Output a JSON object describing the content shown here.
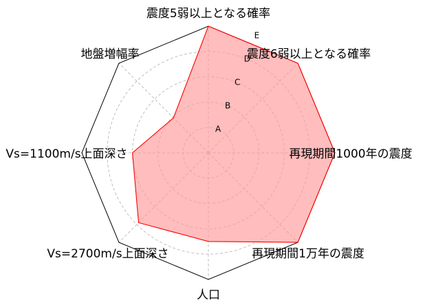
{
  "chart_data": {
    "type": "radar",
    "axes": [
      "震度5弱以上となる確率",
      "震度6弱以上となる確率",
      "再現期間1000年の震度",
      "再現期間1万年の震度",
      "人口",
      "Vs=2700m/s上面深さ",
      "Vs=1100m/s上面深さ",
      "地盤増幅率"
    ],
    "rmax": 5,
    "tick_labels": [
      "A",
      "B",
      "C",
      "D",
      "E"
    ],
    "values": [
      5.0,
      5.0,
      5.0,
      5.0,
      3.5,
      3.9,
      3.0,
      1.95
    ],
    "grid": true,
    "colors": {
      "fill": "#ff9999",
      "fill_opacity": 0.65,
      "line": "#ff0000",
      "frame": "#000000",
      "grid": "#b0b0b0"
    }
  }
}
